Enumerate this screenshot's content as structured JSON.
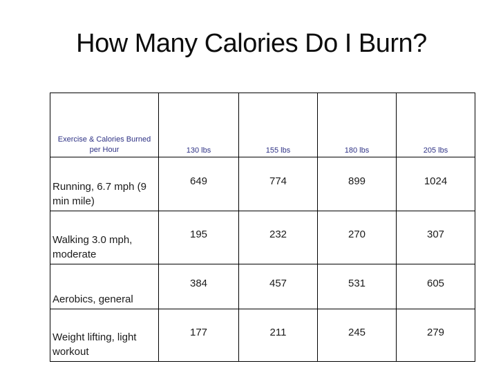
{
  "slide": {
    "title": "How Many Calories Do I Burn?"
  },
  "table": {
    "header": {
      "label": "Exercise & Calories Burned per Hour",
      "columns": [
        "130 lbs",
        "155 lbs",
        "180 lbs",
        "205 lbs"
      ]
    },
    "rows": [
      {
        "label": "Running, 6.7 mph (9 min mile)",
        "values": [
          "649",
          "774",
          "899",
          "1024"
        ]
      },
      {
        "label": "Walking 3.0 mph, moderate",
        "values": [
          "195",
          "232",
          "270",
          "307"
        ]
      },
      {
        "label": "Aerobics, general",
        "values": [
          "384",
          "457",
          "531",
          "605"
        ]
      },
      {
        "label": "Weight lifting, light workout",
        "values": [
          "177",
          "211",
          "245",
          "279"
        ]
      }
    ]
  },
  "colors": {
    "header_text": "#2d3184",
    "body_text": "#1a1a1a",
    "border": "#000000",
    "background": "#ffffff"
  }
}
